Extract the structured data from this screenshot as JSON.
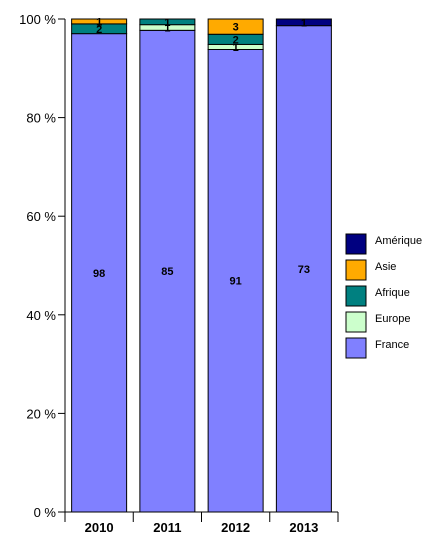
{
  "chart_data": {
    "type": "bar",
    "stacked": true,
    "normalized": true,
    "categories": [
      "2010",
      "2011",
      "2012",
      "2013"
    ],
    "series": [
      {
        "name": "France",
        "color": "#8080ff",
        "values": [
          98,
          85,
          91,
          73
        ]
      },
      {
        "name": "Europe",
        "color": "#ccffcc",
        "values": [
          0,
          1,
          1,
          0
        ]
      },
      {
        "name": "Afrique",
        "color": "#008080",
        "values": [
          2,
          1,
          2,
          0
        ]
      },
      {
        "name": "Asie",
        "color": "#ffaa00",
        "values": [
          1,
          0,
          3,
          0
        ]
      },
      {
        "name": "Amérique",
        "color": "#000080",
        "values": [
          0,
          0,
          0,
          1
        ]
      }
    ],
    "yticks": [
      "0 %",
      "20 %",
      "40 %",
      "60 %",
      "80 %",
      "100 %"
    ],
    "ylim": [
      0,
      100
    ],
    "legend_position": "right",
    "grid": false
  }
}
